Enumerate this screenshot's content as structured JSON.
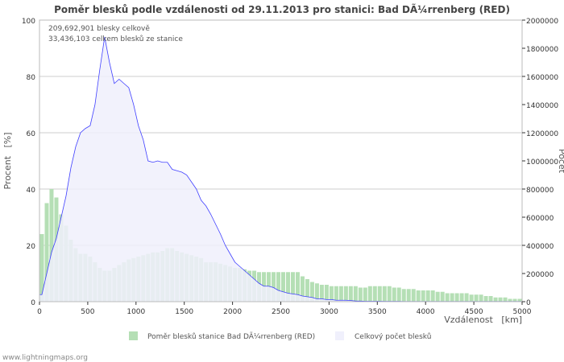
{
  "chart_data": {
    "type": "bar+area",
    "title": "Poměr blesků podle vzdálenosti od 29.11.2013 pro stanici: Bad DÃ¼rrenberg (RED)",
    "xlabel": "Vzdálenost   [km]",
    "ylabel_left": "Procent   [%]",
    "ylabel_right": "Počet",
    "xlim": [
      0,
      5000
    ],
    "ylim_left": [
      0,
      100
    ],
    "ylim_right": [
      0,
      2000000
    ],
    "x_ticks": [
      "0",
      "500",
      "1000",
      "1500",
      "2000",
      "2500",
      "3000",
      "3500",
      "4000",
      "4500",
      "5000"
    ],
    "y_left_ticks": [
      "0",
      "20",
      "40",
      "60",
      "80",
      "100"
    ],
    "y_right_ticks": [
      "0",
      "200000",
      "400000",
      "600000",
      "800000",
      "1000000",
      "1200000",
      "1400000",
      "1600000",
      "1800000",
      "2000000"
    ],
    "annotations": [
      "209,692,901 blesky celkově",
      "33,436,103 celkem blesků ze stanice"
    ],
    "bin_km": 50,
    "series": [
      {
        "name": "Poměr blesků stanice Bad DÃ¼rrenberg (RED)",
        "axis": "left",
        "color": "#b5dfb5",
        "values": [
          24,
          35,
          40,
          37,
          31,
          27,
          22,
          19,
          17,
          17,
          16,
          14,
          12,
          11,
          11,
          12,
          13,
          14,
          15,
          15.5,
          16,
          16.5,
          17,
          17.5,
          17.5,
          18,
          19,
          19,
          18,
          17.5,
          17,
          16.5,
          16,
          15.5,
          14,
          14,
          14,
          13.5,
          13,
          12.5,
          12,
          12,
          11.5,
          11,
          11,
          10.5,
          10.5,
          10.5,
          10.5,
          10.5,
          10.5,
          10.5,
          10.5,
          10.5,
          9,
          8,
          7,
          6.5,
          6,
          6,
          5.5,
          5.5,
          5.5,
          5.5,
          5.5,
          5.5,
          5,
          5,
          5.5,
          5.5,
          5.5,
          5.5,
          5.5,
          5,
          5,
          4.5,
          4.5,
          4.5,
          4,
          4,
          4,
          4,
          3.5,
          3.5,
          3,
          3,
          3,
          3,
          3,
          2.5,
          2.5,
          2.5,
          2,
          2,
          1.5,
          1.5,
          1.5,
          1,
          1,
          1
        ]
      },
      {
        "name": "Celkový počet blesků",
        "axis": "right",
        "color": "#4040ff",
        "fill": "#f0f0fc",
        "values": [
          50000,
          200000,
          350000,
          450000,
          600000,
          750000,
          950000,
          1100000,
          1200000,
          1230000,
          1250000,
          1400000,
          1650000,
          1880000,
          1700000,
          1550000,
          1580000,
          1550000,
          1520000,
          1400000,
          1250000,
          1150000,
          1000000,
          990000,
          1000000,
          990000,
          990000,
          940000,
          930000,
          920000,
          900000,
          850000,
          800000,
          720000,
          680000,
          620000,
          550000,
          480000,
          400000,
          340000,
          280000,
          250000,
          220000,
          190000,
          160000,
          130000,
          110000,
          110000,
          100000,
          80000,
          70000,
          60000,
          55000,
          50000,
          40000,
          35000,
          30000,
          20000,
          20000,
          15000,
          15000,
          10000,
          10000,
          10000,
          8000,
          5000,
          4000,
          3000,
          3000,
          3000,
          3000,
          2000,
          2000,
          2000,
          2000,
          1000,
          1000,
          1000,
          1000,
          1000,
          1000,
          1000,
          1000,
          1000,
          1000,
          1000,
          1000,
          1000,
          1000,
          1000,
          1000,
          1000,
          1000,
          1000,
          1000,
          1000,
          1000,
          1000,
          1000,
          1000
        ]
      }
    ]
  },
  "footer": "www.lightningmaps.org"
}
